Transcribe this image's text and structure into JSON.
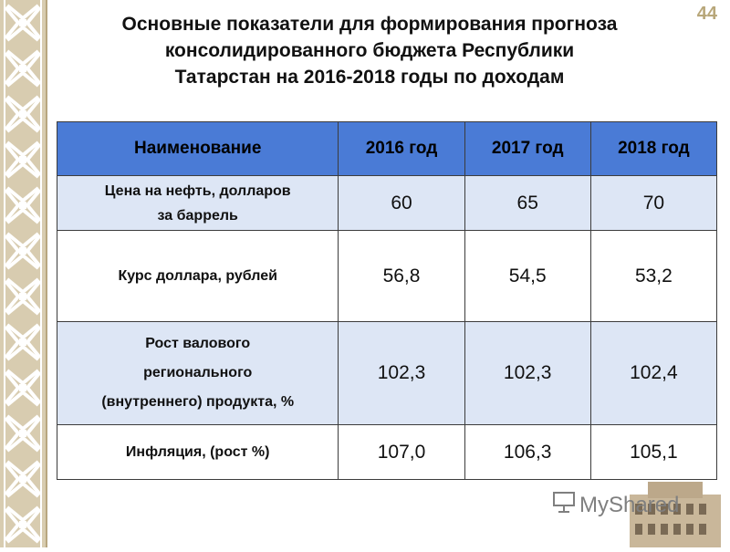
{
  "page": {
    "number": "44",
    "title_lines": [
      "Основные показатели для формирования прогноза",
      "консолидированного бюджета  Республики",
      "Татарстан на 2016-2018 годы по доходам"
    ]
  },
  "table": {
    "headers": [
      "Наименование",
      "2016 год",
      "2017 год",
      "2018 год"
    ],
    "rows": [
      {
        "name_lines": [
          "Цена на нефть, долларов",
          "за баррель"
        ],
        "values": [
          "60",
          "65",
          "70"
        ]
      },
      {
        "name_lines": [
          "Курс доллара, рублей"
        ],
        "values": [
          "56,8",
          "54,5",
          "53,2"
        ]
      },
      {
        "name_lines": [
          "Рост валового",
          "регионального",
          "(внутреннего) продукта, %"
        ],
        "values": [
          "102,3",
          "102,3",
          "102,4"
        ]
      },
      {
        "name_lines": [
          "Инфляция, (рост %)"
        ],
        "values": [
          "107,0",
          "106,3",
          "105,1"
        ]
      }
    ]
  },
  "watermark": {
    "text": "MyShared"
  },
  "colors": {
    "header_bg": "#4a7bd6",
    "row_alt_bg": "#dde6f5",
    "border_ornament": "#d8ccb0",
    "page_number": "#b8a77a"
  }
}
